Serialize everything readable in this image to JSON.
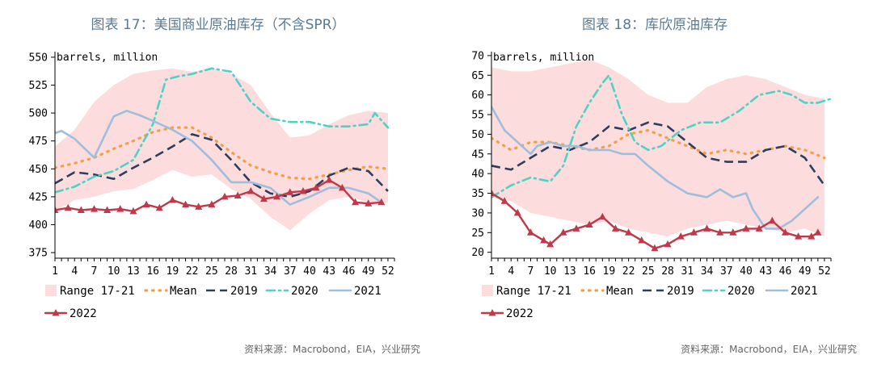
{
  "source_text": "资料来源：Macrobond，EIA，兴业研究",
  "colors": {
    "range": "#fcdcdc",
    "mean": "#f0a04b",
    "y2019": "#2c3e5c",
    "y2020": "#4fd1c5",
    "y2021": "#9fbedc",
    "y2022": "#c0394b"
  },
  "chart_data": [
    {
      "type": "line",
      "title": "图表 17：美国商业原油库存（不含SPR）",
      "unit_label": "barrels, million",
      "ylim": [
        370,
        555
      ],
      "yticks": [
        375,
        400,
        425,
        450,
        475,
        500,
        525,
        550
      ],
      "xlim": [
        1,
        53
      ],
      "xticks": [
        1,
        4,
        7,
        10,
        13,
        16,
        19,
        22,
        25,
        28,
        31,
        34,
        37,
        40,
        43,
        46,
        49,
        52
      ],
      "legend": [
        "Range 17-21",
        "Mean",
        "2019",
        "2020",
        "2021",
        "2022"
      ],
      "range": {
        "x": [
          1,
          4,
          7,
          10,
          13,
          16,
          19,
          22,
          25,
          28,
          31,
          34,
          37,
          40,
          43,
          46,
          49,
          52
        ],
        "low": [
          412,
          422,
          425,
          430,
          432,
          440,
          449,
          443,
          445,
          432,
          423,
          407,
          395,
          410,
          422,
          425,
          420,
          420
        ],
        "high": [
          470,
          485,
          510,
          525,
          535,
          538,
          540,
          537,
          540,
          535,
          525,
          500,
          478,
          480,
          490,
          498,
          502,
          500
        ]
      },
      "series": [
        {
          "name": "Mean",
          "key": "mean",
          "x": [
            1,
            4,
            7,
            10,
            13,
            16,
            19,
            22,
            25,
            28,
            31,
            34,
            37,
            40,
            43,
            46,
            49,
            52
          ],
          "values": [
            451,
            455,
            460,
            468,
            475,
            483,
            487,
            487,
            478,
            465,
            453,
            447,
            442,
            441,
            445,
            449,
            452,
            450
          ]
        },
        {
          "name": "2019",
          "key": "y2019",
          "x": [
            1,
            4,
            7,
            10,
            13,
            16,
            19,
            22,
            25,
            28,
            31,
            34,
            37,
            40,
            43,
            46,
            49,
            52
          ],
          "values": [
            437,
            447,
            445,
            441,
            451,
            460,
            470,
            481,
            476,
            458,
            438,
            428,
            425,
            430,
            444,
            451,
            448,
            430
          ]
        },
        {
          "name": "2020",
          "key": "y2020",
          "x": [
            1,
            4,
            7,
            10,
            13,
            16,
            18,
            20,
            22,
            25,
            28,
            31,
            34,
            37,
            40,
            43,
            46,
            49,
            50,
            52
          ],
          "values": [
            429,
            434,
            443,
            448,
            458,
            490,
            530,
            533,
            535,
            540,
            537,
            510,
            495,
            492,
            492,
            488,
            488,
            490,
            500,
            487
          ]
        },
        {
          "name": "2021",
          "key": "y2021",
          "x": [
            1,
            2,
            4,
            7,
            10,
            12,
            14,
            16,
            19,
            22,
            25,
            28,
            31,
            34,
            37,
            40,
            43,
            46,
            49,
            51
          ],
          "values": [
            482,
            484,
            477,
            460,
            497,
            502,
            498,
            493,
            485,
            475,
            458,
            438,
            438,
            433,
            418,
            425,
            433,
            433,
            428,
            420
          ]
        },
        {
          "name": "2022",
          "key": "y2022",
          "x": [
            1,
            3,
            5,
            7,
            9,
            11,
            13,
            15,
            17,
            19,
            21,
            23,
            25,
            27,
            29,
            31,
            33,
            35,
            37,
            39,
            41,
            43,
            45,
            47,
            49,
            51
          ],
          "values": [
            413,
            415,
            413,
            414,
            413,
            414,
            412,
            418,
            415,
            422,
            418,
            416,
            418,
            425,
            426,
            430,
            423,
            425,
            429,
            430,
            433,
            440,
            433,
            420,
            419,
            420
          ]
        }
      ]
    },
    {
      "type": "line",
      "title": "图表 18：库欣原油库存",
      "unit_label": "barrels, million",
      "ylim": [
        18.5,
        71
      ],
      "yticks": [
        20,
        25,
        30,
        35,
        40,
        45,
        50,
        55,
        60,
        65,
        70
      ],
      "xlim": [
        1,
        53
      ],
      "xticks": [
        1,
        4,
        7,
        10,
        13,
        16,
        19,
        22,
        25,
        28,
        31,
        34,
        37,
        40,
        43,
        46,
        49,
        52
      ],
      "legend": [
        "Range 17-21",
        "Mean",
        "2019",
        "2020",
        "2021",
        "2022"
      ],
      "range": {
        "x": [
          1,
          4,
          7,
          10,
          13,
          16,
          19,
          22,
          25,
          28,
          31,
          34,
          37,
          40,
          43,
          46,
          49,
          52
        ],
        "low": [
          34,
          33,
          30,
          29,
          28,
          27,
          28,
          26,
          25,
          24,
          26,
          27,
          28,
          27,
          26,
          25,
          26,
          24
        ],
        "high": [
          67,
          66,
          66,
          67,
          68,
          69,
          67,
          64,
          60,
          58,
          58,
          62,
          64,
          65,
          64,
          62,
          60,
          59
        ]
      },
      "series": [
        {
          "name": "Mean",
          "key": "mean",
          "x": [
            1,
            4,
            7,
            10,
            13,
            16,
            19,
            22,
            25,
            28,
            31,
            34,
            37,
            40,
            43,
            46,
            49,
            52
          ],
          "values": [
            49,
            46,
            48,
            48,
            47,
            46,
            47,
            50,
            51,
            49,
            47,
            45,
            46,
            45,
            46,
            47,
            46,
            44
          ]
        },
        {
          "name": "2019",
          "key": "y2019",
          "x": [
            1,
            4,
            7,
            10,
            13,
            16,
            19,
            22,
            25,
            28,
            31,
            34,
            37,
            40,
            43,
            46,
            49,
            52
          ],
          "values": [
            42,
            41,
            44,
            47,
            46,
            48,
            52,
            51,
            53,
            52,
            48,
            44,
            43,
            43,
            46,
            47,
            44,
            37
          ]
        },
        {
          "name": "2020",
          "key": "y2020",
          "x": [
            1,
            4,
            7,
            10,
            12,
            14,
            16,
            18,
            19,
            21,
            23,
            25,
            27,
            30,
            33,
            36,
            39,
            42,
            45,
            47,
            49,
            51,
            53
          ],
          "values": [
            34,
            37,
            39,
            38,
            42,
            52,
            58,
            63,
            65,
            55,
            48,
            46,
            47,
            51,
            53,
            53,
            56,
            60,
            61,
            60,
            58,
            58,
            59
          ]
        },
        {
          "name": "2021",
          "key": "y2021",
          "x": [
            1,
            3,
            5,
            7,
            8,
            10,
            12,
            14,
            16,
            19,
            21,
            23,
            25,
            28,
            31,
            34,
            36,
            38,
            40,
            41,
            43,
            45,
            47,
            49,
            51
          ],
          "values": [
            57,
            51,
            48,
            45,
            47,
            48,
            47,
            47,
            46,
            46,
            45,
            45,
            42,
            38,
            35,
            34,
            36,
            34,
            35,
            31,
            26,
            26,
            28,
            31,
            34
          ]
        },
        {
          "name": "2022",
          "key": "y2022",
          "x": [
            1,
            3,
            5,
            7,
            9,
            10,
            12,
            14,
            16,
            18,
            20,
            22,
            24,
            26,
            28,
            30,
            32,
            34,
            36,
            38,
            40,
            42,
            44,
            46,
            48,
            50,
            51
          ],
          "values": [
            35,
            33,
            30,
            25,
            23,
            22,
            25,
            26,
            27,
            29,
            26,
            25,
            23,
            21,
            22,
            24,
            25,
            26,
            25,
            25,
            26,
            26,
            28,
            25,
            24,
            24,
            25
          ]
        }
      ]
    }
  ]
}
